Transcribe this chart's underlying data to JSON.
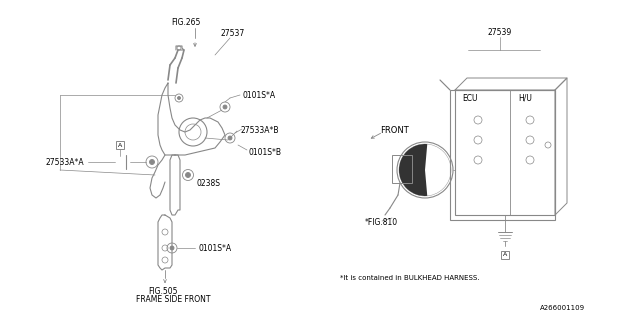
{
  "bg_color": "#ffffff",
  "fig_width": 6.4,
  "fig_height": 3.2,
  "dpi": 100,
  "lc": "#888888",
  "tc": "#000000",
  "fs": 5.5,
  "fs_sm": 5.0,
  "labels": {
    "fig265": "FIG.265",
    "27537": "27537",
    "0101sA_top": "0101S*A",
    "27533aA": "27533A*A",
    "27533aB": "27533A*B",
    "0238s": "0238S",
    "0101sB": "0101S*B",
    "0101sA_bot": "0101S*A",
    "fig505": "FIG.505",
    "frame_side": "FRAME SIDE FRONT",
    "front": "FRONT",
    "27539": "27539",
    "ecu": "ECU",
    "hu": "H/U",
    "fig810": "*FIG.810",
    "contained": "*It is contained in BULKHEAD HARNESS.",
    "part_num": "A266001109"
  }
}
